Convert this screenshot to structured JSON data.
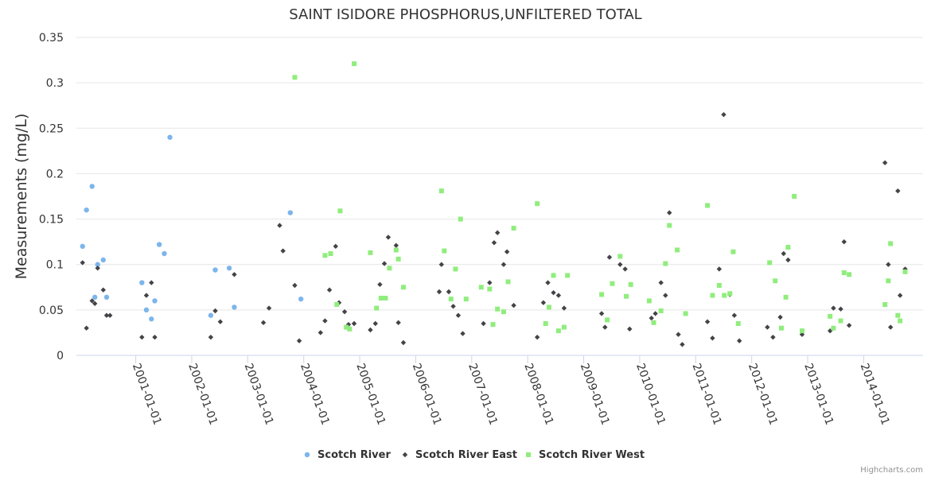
{
  "chart_data": {
    "type": "scatter",
    "title": "SAINT ISIDORE PHOSPHORUS,UNFILTERED TOTAL",
    "xlabel": "",
    "ylabel": "Measurements (mg/L)",
    "ylim": [
      0,
      0.35
    ],
    "yticks": [
      "0",
      "0.05",
      "0.1",
      "0.15",
      "0.2",
      "0.25",
      "0.3",
      "0.35"
    ],
    "xlim": [
      1999.94,
      2015.06
    ],
    "xticks": [
      "2001-01-01",
      "2002-01-01",
      "2003-01-01",
      "2004-01-01",
      "2005-01-01",
      "2006-01-01",
      "2007-01-01",
      "2008-01-01",
      "2009-01-01",
      "2010-01-01",
      "2011-01-01",
      "2012-01-01",
      "2013-01-01",
      "2014-01-01"
    ],
    "legend_position": "bottom",
    "credit": "Highcharts.com",
    "series": [
      {
        "name": "Scotch River",
        "color": "#7cb5ec",
        "marker": "circle",
        "points": [
          [
            2000.05,
            0.12
          ],
          [
            2000.12,
            0.16
          ],
          [
            2000.22,
            0.186
          ],
          [
            2000.27,
            0.064
          ],
          [
            2000.32,
            0.1
          ],
          [
            2000.42,
            0.105
          ],
          [
            2000.48,
            0.064
          ],
          [
            2001.11,
            0.08
          ],
          [
            2001.19,
            0.05
          ],
          [
            2001.28,
            0.04
          ],
          [
            2001.34,
            0.06
          ],
          [
            2001.42,
            0.122
          ],
          [
            2001.51,
            0.112
          ],
          [
            2001.61,
            0.24
          ],
          [
            2002.34,
            0.044
          ],
          [
            2002.42,
            0.094
          ],
          [
            2002.67,
            0.096
          ],
          [
            2002.76,
            0.053
          ],
          [
            2003.76,
            0.157
          ],
          [
            2003.95,
            0.062
          ]
        ]
      },
      {
        "name": "Scotch River East",
        "color": "#434348",
        "marker": "diamond",
        "points": [
          [
            2000.05,
            0.102
          ],
          [
            2000.12,
            0.03
          ],
          [
            2000.22,
            0.06
          ],
          [
            2000.27,
            0.057
          ],
          [
            2000.32,
            0.096
          ],
          [
            2000.42,
            0.072
          ],
          [
            2000.48,
            0.044
          ],
          [
            2000.54,
            0.044
          ],
          [
            2001.11,
            0.02
          ],
          [
            2001.19,
            0.066
          ],
          [
            2001.28,
            0.08
          ],
          [
            2001.34,
            0.02
          ],
          [
            2002.34,
            0.02
          ],
          [
            2002.42,
            0.049
          ],
          [
            2002.51,
            0.037
          ],
          [
            2002.76,
            0.089
          ],
          [
            2003.28,
            0.036
          ],
          [
            2003.38,
            0.052
          ],
          [
            2003.57,
            0.143
          ],
          [
            2003.63,
            0.115
          ],
          [
            2003.84,
            0.077
          ],
          [
            2003.92,
            0.016
          ],
          [
            2004.3,
            0.025
          ],
          [
            2004.38,
            0.038
          ],
          [
            2004.46,
            0.072
          ],
          [
            2004.57,
            0.12
          ],
          [
            2004.63,
            0.058
          ],
          [
            2004.73,
            0.048
          ],
          [
            2004.8,
            0.034
          ],
          [
            2004.9,
            0.035
          ],
          [
            2005.19,
            0.028
          ],
          [
            2005.28,
            0.035
          ],
          [
            2005.36,
            0.078
          ],
          [
            2005.44,
            0.101
          ],
          [
            2005.51,
            0.13
          ],
          [
            2005.65,
            0.121
          ],
          [
            2005.69,
            0.036
          ],
          [
            2005.78,
            0.014
          ],
          [
            2006.42,
            0.07
          ],
          [
            2006.46,
            0.1
          ],
          [
            2006.59,
            0.07
          ],
          [
            2006.67,
            0.054
          ],
          [
            2006.76,
            0.044
          ],
          [
            2006.84,
            0.024
          ],
          [
            2007.21,
            0.035
          ],
          [
            2007.32,
            0.08
          ],
          [
            2007.4,
            0.124
          ],
          [
            2007.46,
            0.135
          ],
          [
            2007.57,
            0.1
          ],
          [
            2007.63,
            0.114
          ],
          [
            2007.75,
            0.055
          ],
          [
            2008.17,
            0.02
          ],
          [
            2008.28,
            0.058
          ],
          [
            2008.36,
            0.08
          ],
          [
            2008.46,
            0.069
          ],
          [
            2008.55,
            0.066
          ],
          [
            2008.65,
            0.052
          ],
          [
            2009.32,
            0.046
          ],
          [
            2009.38,
            0.031
          ],
          [
            2009.46,
            0.108
          ],
          [
            2009.65,
            0.1
          ],
          [
            2009.74,
            0.095
          ],
          [
            2009.82,
            0.029
          ],
          [
            2010.21,
            0.041
          ],
          [
            2010.28,
            0.046
          ],
          [
            2010.38,
            0.08
          ],
          [
            2010.46,
            0.066
          ],
          [
            2010.53,
            0.157
          ],
          [
            2010.69,
            0.023
          ],
          [
            2010.76,
            0.012
          ],
          [
            2011.21,
            0.037
          ],
          [
            2011.3,
            0.019
          ],
          [
            2011.42,
            0.095
          ],
          [
            2011.5,
            0.265
          ],
          [
            2011.61,
            0.067
          ],
          [
            2011.69,
            0.044
          ],
          [
            2011.78,
            0.016
          ],
          [
            2012.28,
            0.031
          ],
          [
            2012.38,
            0.02
          ],
          [
            2012.51,
            0.042
          ],
          [
            2012.57,
            0.112
          ],
          [
            2012.65,
            0.105
          ],
          [
            2012.9,
            0.023
          ],
          [
            2013.4,
            0.027
          ],
          [
            2013.46,
            0.052
          ],
          [
            2013.59,
            0.051
          ],
          [
            2013.65,
            0.125
          ],
          [
            2013.74,
            0.033
          ],
          [
            2014.38,
            0.212
          ],
          [
            2014.44,
            0.1
          ],
          [
            2014.48,
            0.031
          ],
          [
            2014.61,
            0.181
          ],
          [
            2014.65,
            0.066
          ],
          [
            2014.74,
            0.095
          ]
        ]
      },
      {
        "name": "Scotch River West",
        "color": "#90ed7d",
        "marker": "square",
        "points": [
          [
            2003.84,
            0.306
          ],
          [
            2004.38,
            0.11
          ],
          [
            2004.48,
            0.112
          ],
          [
            2004.59,
            0.056
          ],
          [
            2004.65,
            0.159
          ],
          [
            2004.76,
            0.031
          ],
          [
            2004.82,
            0.029
          ],
          [
            2004.9,
            0.321
          ],
          [
            2005.19,
            0.113
          ],
          [
            2005.3,
            0.052
          ],
          [
            2005.38,
            0.063
          ],
          [
            2005.46,
            0.063
          ],
          [
            2005.53,
            0.096
          ],
          [
            2005.65,
            0.116
          ],
          [
            2005.69,
            0.106
          ],
          [
            2005.78,
            0.075
          ],
          [
            2006.46,
            0.181
          ],
          [
            2006.51,
            0.115
          ],
          [
            2006.63,
            0.062
          ],
          [
            2006.71,
            0.095
          ],
          [
            2006.8,
            0.15
          ],
          [
            2006.9,
            0.062
          ],
          [
            2007.17,
            0.075
          ],
          [
            2007.32,
            0.073
          ],
          [
            2007.38,
            0.034
          ],
          [
            2007.46,
            0.051
          ],
          [
            2007.57,
            0.048
          ],
          [
            2007.65,
            0.081
          ],
          [
            2007.75,
            0.14
          ],
          [
            2008.17,
            0.167
          ],
          [
            2008.32,
            0.035
          ],
          [
            2008.38,
            0.053
          ],
          [
            2008.46,
            0.088
          ],
          [
            2008.55,
            0.027
          ],
          [
            2008.65,
            0.031
          ],
          [
            2008.71,
            0.088
          ],
          [
            2009.32,
            0.067
          ],
          [
            2009.42,
            0.039
          ],
          [
            2009.51,
            0.079
          ],
          [
            2009.65,
            0.109
          ],
          [
            2009.76,
            0.065
          ],
          [
            2009.84,
            0.078
          ],
          [
            2010.17,
            0.06
          ],
          [
            2010.25,
            0.036
          ],
          [
            2010.38,
            0.049
          ],
          [
            2010.46,
            0.101
          ],
          [
            2010.53,
            0.143
          ],
          [
            2010.67,
            0.116
          ],
          [
            2010.82,
            0.046
          ],
          [
            2011.21,
            0.165
          ],
          [
            2011.3,
            0.066
          ],
          [
            2011.42,
            0.077
          ],
          [
            2011.51,
            0.066
          ],
          [
            2011.61,
            0.068
          ],
          [
            2011.67,
            0.114
          ],
          [
            2011.76,
            0.035
          ],
          [
            2012.32,
            0.102
          ],
          [
            2012.42,
            0.082
          ],
          [
            2012.53,
            0.03
          ],
          [
            2012.61,
            0.064
          ],
          [
            2012.65,
            0.119
          ],
          [
            2012.76,
            0.175
          ],
          [
            2012.9,
            0.027
          ],
          [
            2013.4,
            0.043
          ],
          [
            2013.46,
            0.03
          ],
          [
            2013.59,
            0.038
          ],
          [
            2013.65,
            0.091
          ],
          [
            2013.74,
            0.089
          ],
          [
            2014.38,
            0.056
          ],
          [
            2014.44,
            0.082
          ],
          [
            2014.48,
            0.123
          ],
          [
            2014.61,
            0.044
          ],
          [
            2014.65,
            0.038
          ],
          [
            2014.74,
            0.092
          ]
        ]
      }
    ]
  }
}
